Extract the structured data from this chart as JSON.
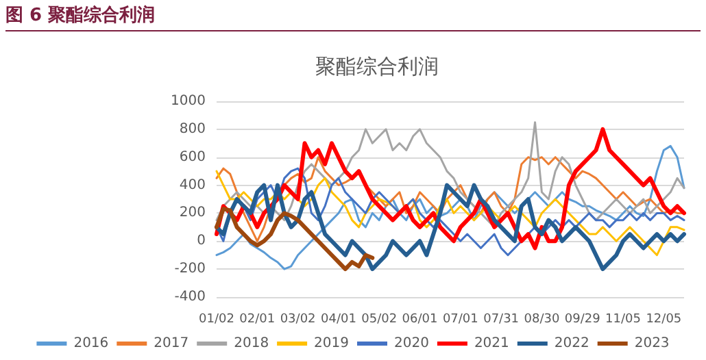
{
  "chart_data": {
    "type": "line",
    "title": "聚酯综合利润",
    "annotations": [
      "图 6 聚酯综合利润"
    ],
    "categories": [
      "01/02",
      null,
      null,
      null,
      null,
      null,
      "02/01",
      null,
      null,
      null,
      null,
      null,
      "03/02",
      null,
      null,
      null,
      null,
      null,
      "04/01",
      null,
      null,
      null,
      null,
      null,
      "05/02",
      null,
      null,
      null,
      null,
      null,
      "06/01",
      null,
      null,
      null,
      null,
      null,
      "07/01",
      null,
      null,
      null,
      null,
      null,
      "07/31",
      null,
      null,
      null,
      null,
      null,
      "08/30",
      null,
      null,
      null,
      null,
      null,
      "09/29",
      null,
      null,
      null,
      null,
      null,
      "11/05",
      null,
      null,
      null,
      null,
      null,
      "12/05",
      null,
      null,
      null
    ],
    "ylim": [
      -400,
      1000
    ],
    "yticks": [
      -400,
      -200,
      0,
      200,
      400,
      600,
      800,
      1000
    ],
    "grid": "y",
    "legend": "bottom",
    "marker": "none",
    "series": [
      {
        "name": "2016",
        "color": "#5b9bd5",
        "values": [
          -100,
          -80,
          -50,
          0,
          50,
          -20,
          -50,
          -80,
          -120,
          -150,
          -200,
          -180,
          -100,
          -50,
          0,
          50,
          100,
          150,
          200,
          280,
          300,
          150,
          100,
          200,
          150,
          250,
          300,
          200,
          150,
          250,
          300,
          200,
          250,
          180,
          200,
          250,
          300,
          250,
          150,
          250,
          300,
          350,
          300,
          250,
          200,
          250,
          300,
          350,
          300,
          250,
          300,
          350,
          300,
          280,
          250,
          250,
          220,
          200,
          180,
          150,
          200,
          250,
          200,
          180,
          300,
          500,
          650,
          680,
          600,
          380
        ]
      },
      {
        "name": "2017",
        "color": "#ed7d31",
        "values": [
          450,
          520,
          480,
          350,
          200,
          100,
          0,
          100,
          250,
          350,
          400,
          450,
          480,
          420,
          450,
          600,
          500,
          450,
          400,
          420,
          450,
          500,
          400,
          350,
          300,
          250,
          300,
          350,
          200,
          250,
          350,
          300,
          250,
          200,
          300,
          350,
          400,
          300,
          250,
          200,
          300,
          350,
          250,
          200,
          300,
          550,
          600,
          580,
          600,
          550,
          600,
          550,
          500,
          450,
          500,
          480,
          450,
          400,
          350,
          300,
          350,
          300,
          250,
          280,
          300,
          250,
          200,
          220,
          200,
          200
        ]
      },
      {
        "name": "2018",
        "color": "#a5a5a5",
        "values": [
          150,
          250,
          300,
          350,
          300,
          250,
          250,
          200,
          250,
          200,
          150,
          250,
          400,
          500,
          550,
          500,
          450,
          400,
          450,
          500,
          600,
          650,
          800,
          700,
          750,
          800,
          650,
          700,
          650,
          750,
          800,
          700,
          650,
          600,
          500,
          450,
          350,
          300,
          250,
          200,
          150,
          100,
          200,
          250,
          300,
          350,
          450,
          850,
          350,
          300,
          500,
          600,
          550,
          400,
          300,
          200,
          150,
          200,
          250,
          300,
          250,
          200,
          250,
          300,
          200,
          250,
          300,
          350,
          450,
          380
        ]
      },
      {
        "name": "2019",
        "color": "#ffc000",
        "values": [
          500,
          400,
          300,
          300,
          350,
          300,
          250,
          300,
          300,
          350,
          300,
          350,
          300,
          250,
          300,
          400,
          450,
          350,
          300,
          250,
          150,
          100,
          200,
          250,
          300,
          280,
          250,
          200,
          250,
          300,
          150,
          100,
          150,
          250,
          300,
          200,
          250,
          200,
          150,
          200,
          250,
          200,
          150,
          200,
          250,
          200,
          150,
          100,
          200,
          250,
          300,
          250,
          200,
          150,
          100,
          50,
          50,
          100,
          50,
          0,
          50,
          100,
          50,
          0,
          -50,
          -100,
          0,
          100,
          100,
          80
        ]
      },
      {
        "name": "2020",
        "color": "#4472c4",
        "values": [
          100,
          0,
          200,
          300,
          250,
          150,
          300,
          350,
          400,
          300,
          450,
          500,
          520,
          450,
          200,
          150,
          250,
          400,
          450,
          350,
          300,
          250,
          200,
          300,
          350,
          300,
          250,
          200,
          250,
          300,
          200,
          150,
          100,
          150,
          100,
          50,
          0,
          50,
          0,
          -50,
          0,
          50,
          -50,
          -100,
          -50,
          0,
          50,
          100,
          50,
          100,
          150,
          100,
          150,
          100,
          150,
          200,
          150,
          150,
          100,
          150,
          150,
          200,
          150,
          200,
          150,
          200,
          200,
          150,
          180,
          150
        ]
      },
      {
        "name": "2021",
        "color": "#ff0000",
        "values": [
          50,
          250,
          200,
          150,
          250,
          200,
          100,
          200,
          250,
          300,
          400,
          350,
          300,
          700,
          600,
          650,
          550,
          700,
          600,
          500,
          450,
          500,
          400,
          300,
          250,
          200,
          150,
          200,
          250,
          150,
          100,
          150,
          200,
          100,
          50,
          0,
          100,
          150,
          200,
          300,
          200,
          100,
          150,
          200,
          100,
          0,
          50,
          -50,
          100,
          0,
          0,
          100,
          400,
          500,
          550,
          600,
          650,
          800,
          650,
          600,
          550,
          500,
          450,
          400,
          450,
          350,
          250,
          200,
          250,
          200
        ]
      },
      {
        "name": "2022",
        "color": "#255e91",
        "values": [
          100,
          50,
          200,
          300,
          250,
          200,
          350,
          400,
          150,
          400,
          200,
          100,
          150,
          300,
          350,
          200,
          50,
          0,
          -50,
          -100,
          0,
          -50,
          -100,
          -200,
          -150,
          -100,
          0,
          -50,
          -100,
          -50,
          0,
          -100,
          50,
          200,
          400,
          350,
          300,
          250,
          400,
          300,
          250,
          150,
          100,
          50,
          0,
          250,
          300,
          100,
          50,
          150,
          100,
          0,
          50,
          100,
          50,
          0,
          -100,
          -200,
          -150,
          -100,
          0,
          50,
          0,
          -50,
          0,
          50,
          0,
          50,
          0,
          50
        ]
      },
      {
        "name": "2023",
        "color": "#9e480e",
        "values": [
          100,
          230,
          220,
          100,
          50,
          0,
          -30,
          0,
          50,
          150,
          200,
          180,
          150,
          100,
          50,
          0,
          -50,
          -100,
          -150,
          -200,
          -150,
          -180,
          -100,
          -120,
          null,
          null,
          null,
          null,
          null,
          null,
          null,
          null,
          null,
          null,
          null,
          null,
          null,
          null,
          null,
          null,
          null,
          null,
          null,
          null,
          null,
          null,
          null,
          null,
          null,
          null,
          null,
          null,
          null,
          null,
          null,
          null,
          null,
          null,
          null,
          null,
          null,
          null,
          null,
          null,
          null,
          null,
          null,
          null,
          null,
          null
        ]
      }
    ]
  }
}
